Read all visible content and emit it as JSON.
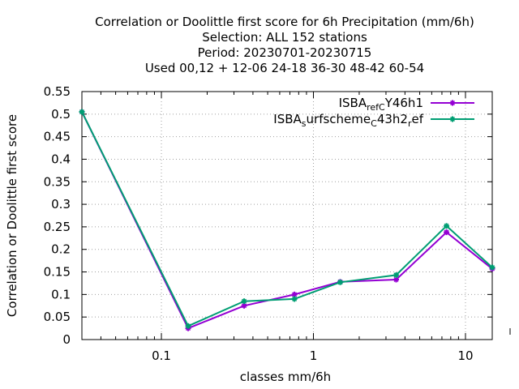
{
  "chart_data": {
    "type": "line",
    "title_lines": [
      "Correlation or Doolittle first score  for 6h Precipitation (mm/6h)",
      "Selection: ALL    152 stations",
      "Period: 20230701-20230715",
      "Used  00,12  + 12-06 24-18 36-30 48-42 60-54"
    ],
    "xlabel": "classes mm/6h",
    "ylabel": "Correlation or Doolittle first score",
    "x_scale": "log",
    "xlim": [
      0.03,
      15
    ],
    "ylim": [
      0,
      0.55
    ],
    "grid": true,
    "legend_position": "top-right",
    "x_ticks": [
      "0.1",
      "1",
      "10"
    ],
    "y_ticks": [
      "0",
      "0.05",
      "0.1",
      "0.15",
      "0.2",
      "0.25",
      "0.3",
      "0.35",
      "0.4",
      "0.45",
      "0.5",
      "0.55"
    ],
    "x": [
      0.03,
      0.15,
      0.35,
      0.75,
      1.5,
      3.5,
      7.5,
      15
    ],
    "series": [
      {
        "legend_parts": [
          [
            "ISBA",
            ""
          ],
          [
            "ref",
            "sub"
          ],
          [
            "C",
            "sub"
          ],
          [
            "Y46h1",
            ""
          ]
        ],
        "color": "#9400d3",
        "values": [
          0.505,
          0.025,
          0.075,
          0.1,
          0.128,
          0.133,
          0.238,
          0.157
        ]
      },
      {
        "legend_parts": [
          [
            "ISBA",
            ""
          ],
          [
            "s",
            "sub"
          ],
          [
            "urfscheme",
            ""
          ],
          [
            "C",
            "sub"
          ],
          [
            "43h2",
            ""
          ],
          [
            "r",
            "sub"
          ],
          [
            "ef",
            ""
          ]
        ],
        "color": "#009e73",
        "values": [
          0.505,
          0.03,
          0.085,
          0.09,
          0.127,
          0.143,
          0.252,
          0.16
        ]
      }
    ]
  }
}
